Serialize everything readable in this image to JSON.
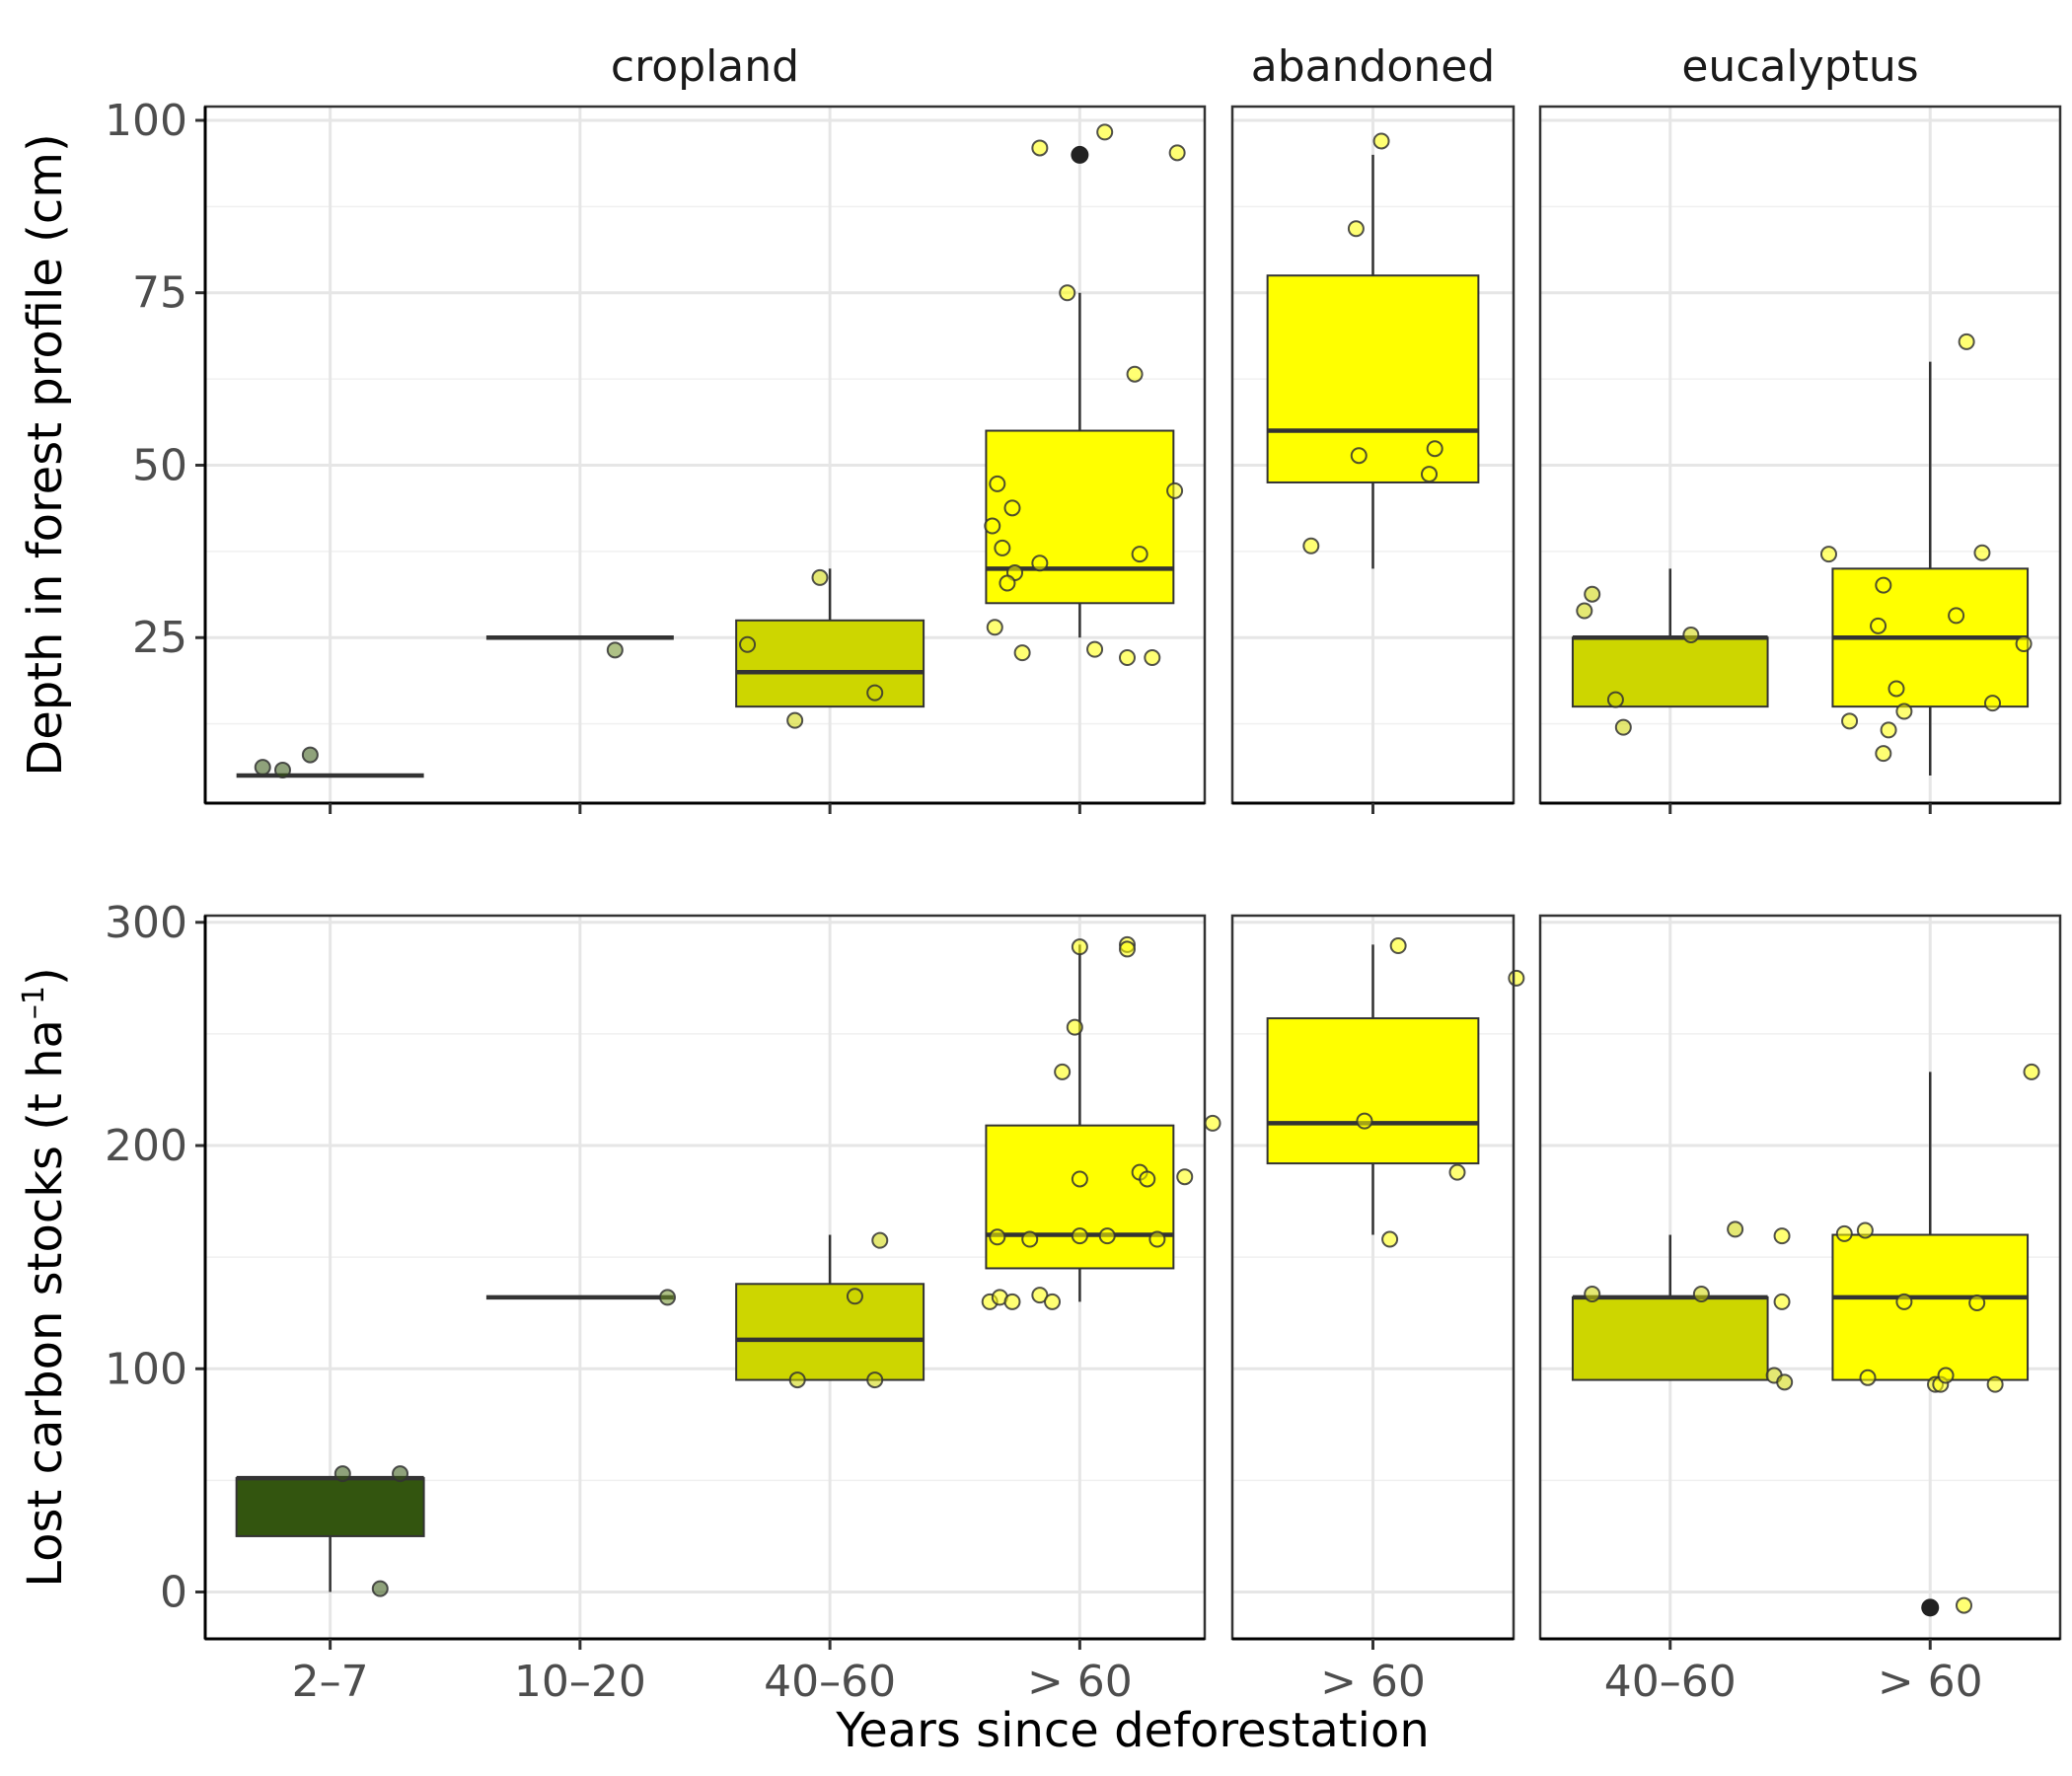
{
  "chart_data": {
    "type": "box",
    "xlabel": "Years since deforestation",
    "colors": {
      "2-7": "#33550f",
      "10-20": "#6b8e23",
      "40-60": "#cdd600",
      ">60": "#ffff00",
      "outlier": "#222222",
      "box_line": "#333333"
    },
    "facet_columns": [
      {
        "id": "cropland",
        "label": "cropland",
        "categories": [
          "2–7",
          "10–20",
          "40–60",
          "> 60"
        ]
      },
      {
        "id": "abandoned",
        "label": "abandoned",
        "categories": [
          "> 60"
        ]
      },
      {
        "id": "eucalyptus",
        "label": "eucalyptus",
        "categories": [
          "40–60",
          "> 60"
        ]
      }
    ],
    "rows": [
      {
        "id": "depth",
        "ylabel": "Depth in forest profile (cm)",
        "ylabel_sup": "",
        "ylabel_tail": "",
        "ylim": [
          1,
          102
        ],
        "ticks": [
          25,
          50,
          75,
          100
        ],
        "minor_ticks": [
          12.5,
          37.5,
          62.5,
          87.5
        ],
        "panels": [
          {
            "facet": "cropland",
            "boxes": [
              {
                "cat": "2–7",
                "color_key": "2-7",
                "q1": 5,
                "median": 5,
                "q3": 5,
                "lo": 5,
                "hi": 5,
                "points": [
                  [
                    -0.27,
                    6.2
                  ],
                  [
                    -0.19,
                    5.8
                  ],
                  [
                    -0.08,
                    8.0
                  ]
                ],
                "outliers": []
              },
              {
                "cat": "10–20",
                "color_key": "10-20",
                "q1": 25,
                "median": 25,
                "q3": 25,
                "lo": 25,
                "hi": 25,
                "points": [
                  [
                    0.14,
                    23.2
                  ]
                ],
                "outliers": []
              },
              {
                "cat": "40–60",
                "color_key": "40-60",
                "q1": 15,
                "median": 20,
                "q3": 27.5,
                "lo": 15,
                "hi": 35,
                "points": [
                  [
                    -0.33,
                    24.0
                  ],
                  [
                    -0.14,
                    13.0
                  ],
                  [
                    -0.04,
                    33.7
                  ],
                  [
                    0.18,
                    17.0
                  ]
                ],
                "outliers": []
              },
              {
                "cat": "> 60",
                "color_key": ">60",
                "q1": 30,
                "median": 35,
                "q3": 55,
                "lo": 25,
                "hi": 75,
                "points": [
                  [
                    -0.16,
                    96
                  ],
                  [
                    0.1,
                    98.3
                  ],
                  [
                    0.39,
                    95.3
                  ],
                  [
                    -0.05,
                    75
                  ],
                  [
                    0.22,
                    63.2
                  ],
                  [
                    -0.33,
                    47.3
                  ],
                  [
                    -0.27,
                    43.8
                  ],
                  [
                    -0.35,
                    41.2
                  ],
                  [
                    -0.31,
                    38
                  ],
                  [
                    -0.26,
                    34.4
                  ],
                  [
                    -0.16,
                    35.8
                  ],
                  [
                    -0.29,
                    32.9
                  ],
                  [
                    0.24,
                    37.1
                  ],
                  [
                    0.38,
                    46.3
                  ],
                  [
                    -0.34,
                    26.5
                  ],
                  [
                    -0.23,
                    22.8
                  ],
                  [
                    0.06,
                    23.3
                  ],
                  [
                    0.19,
                    22.1
                  ],
                  [
                    0.29,
                    22.1
                  ]
                ],
                "outliers": [
                  95
                ]
              }
            ]
          },
          {
            "facet": "abandoned",
            "boxes": [
              {
                "cat": "> 60",
                "color_key": ">60",
                "q1": 47.5,
                "median": 55,
                "q3": 77.5,
                "lo": 35,
                "hi": 95,
                "points": [
                  [
                    0.03,
                    97
                  ],
                  [
                    -0.06,
                    84.3
                  ],
                  [
                    -0.05,
                    51.4
                  ],
                  [
                    0.22,
                    52.4
                  ],
                  [
                    0.2,
                    48.7
                  ],
                  [
                    -0.22,
                    38.3
                  ]
                ],
                "outliers": []
              }
            ]
          },
          {
            "facet": "eucalyptus",
            "boxes": [
              {
                "cat": "40–60",
                "color_key": "40-60",
                "q1": 15,
                "median": 25,
                "q3": 25,
                "lo": 15,
                "hi": 35,
                "points": [
                  [
                    -0.3,
                    31.3
                  ],
                  [
                    -0.33,
                    28.9
                  ],
                  [
                    0.08,
                    25.4
                  ],
                  [
                    -0.21,
                    16
                  ],
                  [
                    -0.18,
                    12
                  ]
                ],
                "outliers": []
              },
              {
                "cat": "> 60",
                "color_key": ">60",
                "q1": 15,
                "median": 25,
                "q3": 35,
                "lo": 5,
                "hi": 65,
                "points": [
                  [
                    0.14,
                    67.9
                  ],
                  [
                    -0.39,
                    37.1
                  ],
                  [
                    0.2,
                    37.3
                  ],
                  [
                    -0.18,
                    32.6
                  ],
                  [
                    -0.2,
                    26.7
                  ],
                  [
                    0.1,
                    28.2
                  ],
                  [
                    0.36,
                    24.1
                  ],
                  [
                    -0.13,
                    17.6
                  ],
                  [
                    0.24,
                    15.5
                  ],
                  [
                    -0.31,
                    12.9
                  ],
                  [
                    -0.16,
                    11.6
                  ],
                  [
                    -0.1,
                    14.3
                  ],
                  [
                    -0.18,
                    8.2
                  ]
                ],
                "outliers": []
              }
            ]
          }
        ]
      },
      {
        "id": "carbon",
        "ylabel": "Lost carbon stocks (t ha",
        "ylabel_sup": "–1",
        "ylabel_tail": ")",
        "ylim": [
          -21,
          303
        ],
        "ticks": [
          0,
          100,
          200,
          300
        ],
        "minor_ticks": [
          50,
          150,
          250
        ],
        "panels": [
          {
            "facet": "cropland",
            "boxes": [
              {
                "cat": "2–7",
                "color_key": "2-7",
                "q1": 25,
                "median": 51,
                "q3": 51,
                "lo": 0,
                "hi": 51,
                "points": [
                  [
                    0.05,
                    53
                  ],
                  [
                    0.28,
                    53
                  ],
                  [
                    0.2,
                    1.5
                  ]
                ],
                "outliers": []
              },
              {
                "cat": "10–20",
                "color_key": "10-20",
                "q1": 132,
                "median": 132,
                "q3": 132,
                "lo": 132,
                "hi": 132,
                "points": [
                  [
                    0.35,
                    132
                  ]
                ],
                "outliers": []
              },
              {
                "cat": "40–60",
                "color_key": "40-60",
                "q1": 95,
                "median": 113,
                "q3": 138,
                "lo": 95,
                "hi": 160,
                "points": [
                  [
                    0.2,
                    157.5
                  ],
                  [
                    0.1,
                    132.5
                  ],
                  [
                    -0.13,
                    95
                  ],
                  [
                    0.18,
                    95
                  ]
                ],
                "outliers": []
              },
              {
                "cat": "> 60",
                "color_key": ">60",
                "q1": 145,
                "median": 160,
                "q3": 209,
                "lo": 130,
                "hi": 290,
                "points": [
                  [
                    0.0,
                    289
                  ],
                  [
                    0.19,
                    290
                  ],
                  [
                    0.19,
                    288
                  ],
                  [
                    -0.02,
                    253
                  ],
                  [
                    -0.07,
                    233
                  ],
                  [
                    0.24,
                    188
                  ],
                  [
                    0.27,
                    185
                  ],
                  [
                    0.0,
                    185
                  ],
                  [
                    0.42,
                    186
                  ],
                  [
                    -0.33,
                    159
                  ],
                  [
                    -0.2,
                    158
                  ],
                  [
                    0.0,
                    159.5
                  ],
                  [
                    0.11,
                    159.5
                  ],
                  [
                    0.31,
                    158
                  ],
                  [
                    -0.36,
                    130
                  ],
                  [
                    -0.32,
                    132
                  ],
                  [
                    -0.27,
                    130
                  ],
                  [
                    -0.16,
                    133
                  ],
                  [
                    -0.11,
                    130
                  ]
                ],
                "outliers": []
              }
            ]
          },
          {
            "facet": "abandoned",
            "boxes": [
              {
                "cat": "> 60",
                "color_key": ">60",
                "q1": 192,
                "median": 210,
                "q3": 257,
                "lo": 160,
                "hi": 290,
                "points": [
                  [
                    0.09,
                    289.5
                  ],
                  [
                    0.51,
                    275
                  ],
                  [
                    -0.57,
                    210
                  ],
                  [
                    -0.03,
                    211
                  ],
                  [
                    0.3,
                    188
                  ],
                  [
                    0.06,
                    158
                  ]
                ],
                "outliers": []
              }
            ]
          },
          {
            "facet": "eucalyptus",
            "boxes": [
              {
                "cat": "40–60",
                "color_key": "40-60",
                "q1": 95,
                "median": 132,
                "q3": 132,
                "lo": 95,
                "hi": 160,
                "points": [
                  [
                    0.25,
                    162.5
                  ],
                  [
                    -0.3,
                    133.5
                  ],
                  [
                    0.12,
                    133.5
                  ],
                  [
                    0.4,
                    97
                  ],
                  [
                    0.44,
                    94
                  ]
                ],
                "outliers": []
              },
              {
                "cat": "> 60",
                "color_key": ">60",
                "q1": 95,
                "median": 132,
                "q3": 160,
                "lo": 95,
                "hi": 233,
                "points": [
                  [
                    0.39,
                    233
                  ],
                  [
                    -0.57,
                    159.5
                  ],
                  [
                    -0.33,
                    160.5
                  ],
                  [
                    -0.25,
                    162
                  ],
                  [
                    -0.57,
                    130
                  ],
                  [
                    -0.1,
                    130
                  ],
                  [
                    0.18,
                    129.5
                  ],
                  [
                    -0.24,
                    96
                  ],
                  [
                    0.02,
                    93
                  ],
                  [
                    0.04,
                    93
                  ],
                  [
                    0.06,
                    97
                  ],
                  [
                    0.25,
                    93
                  ],
                  [
                    0.13,
                    -6
                  ]
                ],
                "outliers": [
                  -7
                ]
              }
            ]
          }
        ]
      }
    ]
  }
}
